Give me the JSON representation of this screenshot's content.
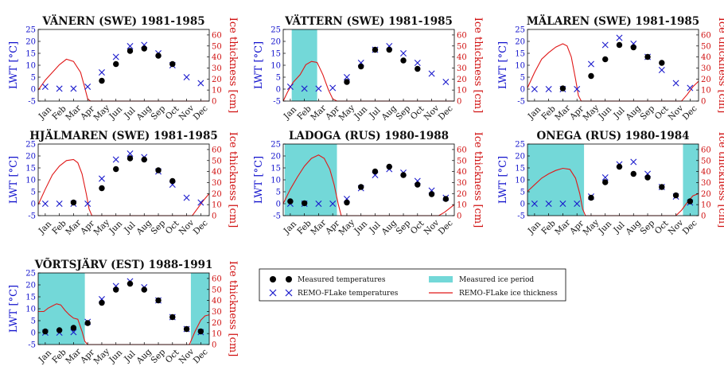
{
  "colors": {
    "ice_period": "#73d8d8",
    "ice_line": "#e01818",
    "remo_marker": "#1a1acc",
    "measured_marker": "#000000",
    "left_axis": "#1010cc",
    "right_axis": "#d01010"
  },
  "legend": {
    "measured": "Measured temperatures",
    "remo": "REMO-FLake temperatures",
    "ice_period": "Measured ice period",
    "ice_thickness": "REMO-FLake ice thickness"
  },
  "chart_data": [
    {
      "type": "line",
      "title": "VÄNERN (SWE) 1981-1985",
      "ylabel": "LWT [°C]",
      "y2label": "Ice thickness [cm]",
      "ylim": [
        -5,
        25
      ],
      "y2lim": [
        0,
        65
      ],
      "yticks": [
        "-5",
        "0",
        "5",
        "10",
        "15",
        "20",
        "25"
      ],
      "y2ticks": [
        "0",
        "10",
        "20",
        "30",
        "40",
        "50",
        "60"
      ],
      "categories": [
        "Jan",
        "Feb",
        "Mar",
        "Apr",
        "May",
        "Jun",
        "Jul",
        "Aug",
        "Sep",
        "Oct",
        "Nov",
        "Dec"
      ],
      "measured": [
        null,
        null,
        null,
        null,
        3.5,
        10.5,
        16,
        17,
        14,
        10.5,
        null,
        null
      ],
      "remo": [
        1,
        0.2,
        0.2,
        1,
        7,
        13.5,
        18,
        18.5,
        15,
        10,
        5,
        2.5
      ],
      "ice_periods": [],
      "ice_thickness": [
        [
          0.5,
          10
        ],
        [
          1,
          19
        ],
        [
          1.5,
          26
        ],
        [
          2,
          33
        ],
        [
          2.5,
          38
        ],
        [
          3,
          36
        ],
        [
          3.5,
          26
        ],
        [
          3.8,
          12
        ],
        [
          4,
          2
        ],
        [
          4.2,
          0
        ],
        [
          12.6,
          0
        ]
      ]
    },
    {
      "type": "line",
      "title": "VÄTTERN (SWE) 1981-1985",
      "ylabel": "LWT [°C]",
      "y2label": "Ice thickness [cm]",
      "ylim": [
        -5,
        25
      ],
      "y2lim": [
        0,
        65
      ],
      "yticks": [
        "-5",
        "0",
        "5",
        "10",
        "15",
        "20",
        "25"
      ],
      "y2ticks": [
        "0",
        "10",
        "20",
        "30",
        "40",
        "50",
        "60"
      ],
      "categories": [
        "Jan",
        "Feb",
        "Mar",
        "Apr",
        "May",
        "Jun",
        "Jul",
        "Aug",
        "Sep",
        "Oct",
        "Nov",
        "Dec"
      ],
      "measured": [
        null,
        null,
        null,
        null,
        3,
        9.5,
        16.5,
        16.5,
        12,
        8.5,
        null,
        null
      ],
      "remo": [
        1,
        0.2,
        0.2,
        0.5,
        5,
        11,
        16.5,
        18,
        15,
        11,
        6.5,
        3
      ],
      "ice_periods": [
        [
          1.1,
          2.9
        ]
      ],
      "ice_thickness": [
        [
          0.5,
          0
        ],
        [
          0.8,
          8
        ],
        [
          1.2,
          17
        ],
        [
          1.7,
          24
        ],
        [
          2.1,
          33
        ],
        [
          2.5,
          36
        ],
        [
          2.9,
          35
        ],
        [
          3.3,
          24
        ],
        [
          3.7,
          10
        ],
        [
          4.0,
          2
        ],
        [
          4.3,
          0
        ],
        [
          12.6,
          0
        ]
      ]
    },
    {
      "type": "line",
      "title": "MÄLAREN (SWE) 1981-1985",
      "ylabel": "LWT [°C]",
      "y2label": "Ice thickness [cm]",
      "ylim": [
        -5,
        25
      ],
      "y2lim": [
        0,
        65
      ],
      "yticks": [
        "-5",
        "0",
        "5",
        "10",
        "15",
        "20",
        "25"
      ],
      "y2ticks": [
        "0",
        "10",
        "20",
        "30",
        "40",
        "50",
        "60"
      ],
      "categories": [
        "Jan",
        "Feb",
        "Mar",
        "Apr",
        "May",
        "Jun",
        "Jul",
        "Aug",
        "Sep",
        "Oct",
        "Nov",
        "Dec"
      ],
      "measured": [
        null,
        null,
        0.3,
        null,
        5.5,
        12.5,
        18.5,
        17.5,
        13.5,
        11,
        null,
        null
      ],
      "remo": [
        0,
        0,
        0,
        0,
        10.5,
        18.5,
        21.5,
        19,
        13.5,
        8,
        2.5,
        0.5
      ],
      "ice_periods": [],
      "ice_thickness": [
        [
          0.5,
          12
        ],
        [
          1,
          26
        ],
        [
          1.5,
          38
        ],
        [
          2,
          44
        ],
        [
          2.5,
          49
        ],
        [
          3,
          52
        ],
        [
          3.3,
          50
        ],
        [
          3.6,
          40
        ],
        [
          3.9,
          20
        ],
        [
          4.1,
          5
        ],
        [
          4.3,
          0
        ],
        [
          11.4,
          0
        ],
        [
          11.8,
          6
        ],
        [
          12.2,
          13
        ],
        [
          12.6,
          18
        ]
      ]
    },
    {
      "type": "line",
      "title": "HJÄLMAREN (SWE) 1981-1985",
      "ylabel": "LWT [°C]",
      "y2label": "Ice thickness [cm]",
      "ylim": [
        -5,
        25
      ],
      "y2lim": [
        0,
        65
      ],
      "yticks": [
        "-5",
        "0",
        "5",
        "10",
        "15",
        "20",
        "25"
      ],
      "y2ticks": [
        "0",
        "10",
        "20",
        "30",
        "40",
        "50",
        "60"
      ],
      "categories": [
        "Jan",
        "Feb",
        "Mar",
        "Apr",
        "May",
        "Jun",
        "Jul",
        "Aug",
        "Sep",
        "Oct",
        "Nov",
        "Dec"
      ],
      "measured": [
        null,
        null,
        0.5,
        null,
        6.5,
        14.5,
        19,
        18.5,
        14,
        9.5,
        null,
        null
      ],
      "remo": [
        0,
        0,
        0,
        0,
        10.5,
        18.5,
        21,
        19.5,
        13.5,
        8,
        2.5,
        0.5
      ],
      "ice_periods": [],
      "ice_thickness": [
        [
          0.5,
          10
        ],
        [
          1,
          24
        ],
        [
          1.5,
          37
        ],
        [
          2,
          45
        ],
        [
          2.5,
          50
        ],
        [
          3,
          51
        ],
        [
          3.3,
          48
        ],
        [
          3.6,
          38
        ],
        [
          3.9,
          20
        ],
        [
          4.1,
          6
        ],
        [
          4.3,
          0
        ],
        [
          11.4,
          0
        ],
        [
          11.8,
          7
        ],
        [
          12.2,
          14
        ],
        [
          12.6,
          20
        ]
      ]
    },
    {
      "type": "line",
      "title": "LADOGA (RUS) 1980-1988",
      "ylabel": "LWT [°C]",
      "y2label": "Ice thickness [cm]",
      "ylim": [
        -5,
        25
      ],
      "y2lim": [
        0,
        65
      ],
      "yticks": [
        "-5",
        "0",
        "5",
        "10",
        "15",
        "20",
        "25"
      ],
      "y2ticks": [
        "0",
        "10",
        "20",
        "30",
        "40",
        "50",
        "60"
      ],
      "categories": [
        "Jan",
        "Feb",
        "Mar",
        "Apr",
        "May",
        "Jun",
        "Jul",
        "Aug",
        "Sep",
        "Oct",
        "Nov",
        "Dec"
      ],
      "measured": [
        1,
        0.2,
        null,
        null,
        0.5,
        7,
        13.5,
        15.5,
        12,
        8,
        4,
        2
      ],
      "remo": [
        0,
        0,
        0,
        0,
        2,
        6.5,
        12,
        14.5,
        13,
        9.5,
        5.5,
        2.5
      ],
      "ice_periods": [
        [
          0.6,
          4.3
        ]
      ],
      "ice_thickness": [
        [
          0.5,
          11
        ],
        [
          1,
          24
        ],
        [
          1.5,
          35
        ],
        [
          2,
          45
        ],
        [
          2.5,
          52
        ],
        [
          3,
          55
        ],
        [
          3.4,
          52
        ],
        [
          3.8,
          42
        ],
        [
          4.1,
          28
        ],
        [
          4.4,
          10
        ],
        [
          4.6,
          0
        ],
        [
          11.5,
          0
        ],
        [
          11.9,
          3
        ],
        [
          12.3,
          7
        ],
        [
          12.6,
          10
        ]
      ]
    },
    {
      "type": "line",
      "title": "ONEGA (RUS) 1980-1984",
      "ylabel": "LWT [°C]",
      "y2label": "Ice thickness [cm]",
      "ylim": [
        -5,
        25
      ],
      "y2lim": [
        0,
        65
      ],
      "yticks": [
        "-5",
        "0",
        "5",
        "10",
        "15",
        "20",
        "25"
      ],
      "y2ticks": [
        "0",
        "10",
        "20",
        "30",
        "40",
        "50",
        "60"
      ],
      "categories": [
        "Jan",
        "Feb",
        "Mar",
        "Apr",
        "May",
        "Jun",
        "Jul",
        "Aug",
        "Sep",
        "Oct",
        "Nov",
        "Dec"
      ],
      "measured": [
        null,
        null,
        null,
        null,
        2.5,
        9,
        15.5,
        12.5,
        11,
        7,
        3.5,
        1
      ],
      "remo": [
        0,
        0,
        0,
        0,
        3,
        11,
        16.5,
        17.5,
        12.5,
        7,
        3,
        0.5
      ],
      "ice_periods": [
        [
          0.5,
          4.5
        ],
        [
          11.5,
          12.6
        ]
      ],
      "ice_thickness": [
        [
          0.5,
          22
        ],
        [
          1,
          28
        ],
        [
          1.5,
          34
        ],
        [
          2,
          38
        ],
        [
          2.5,
          41
        ],
        [
          3,
          43
        ],
        [
          3.5,
          42
        ],
        [
          3.9,
          34
        ],
        [
          4.2,
          20
        ],
        [
          4.4,
          6
        ],
        [
          4.6,
          0
        ],
        [
          11.0,
          0
        ],
        [
          11.4,
          5
        ],
        [
          11.8,
          12
        ],
        [
          12.2,
          18
        ],
        [
          12.6,
          20
        ]
      ]
    },
    {
      "type": "line",
      "title": "VÕRTSJÄRV (EST) 1988-1991",
      "ylabel": "LWT [°C]",
      "y2label": "Ice thickness [cm]",
      "ylim": [
        -5,
        25
      ],
      "y2lim": [
        0,
        65
      ],
      "yticks": [
        "-5",
        "0",
        "5",
        "10",
        "15",
        "20",
        "25"
      ],
      "y2ticks": [
        "0",
        "10",
        "20",
        "30",
        "40",
        "50",
        "60"
      ],
      "categories": [
        "Jan",
        "Feb",
        "Mar",
        "Apr",
        "May",
        "Jun",
        "Jul",
        "Aug",
        "Sep",
        "Oct",
        "Nov",
        "Dec"
      ],
      "measured": [
        0.5,
        1,
        2,
        4,
        12.5,
        18,
        20.5,
        18,
        13.5,
        6.5,
        1.5,
        0.5
      ],
      "remo": [
        0,
        0,
        0.2,
        4.5,
        14,
        19.5,
        21.5,
        19,
        13.5,
        6.5,
        1.5,
        0.2
      ],
      "ice_periods": [
        [
          0.5,
          3.8
        ],
        [
          11.3,
          12.6
        ]
      ],
      "ice_thickness": [
        [
          0.5,
          30
        ],
        [
          0.9,
          30
        ],
        [
          1.2,
          33
        ],
        [
          1.5,
          35
        ],
        [
          1.8,
          37
        ],
        [
          2.1,
          36
        ],
        [
          2.4,
          31
        ],
        [
          2.7,
          27
        ],
        [
          3.0,
          24
        ],
        [
          3.3,
          23
        ],
        [
          3.6,
          12
        ],
        [
          3.8,
          3
        ],
        [
          4.0,
          0
        ],
        [
          11.2,
          0
        ],
        [
          11.6,
          12
        ],
        [
          12.0,
          22
        ],
        [
          12.3,
          26
        ],
        [
          12.6,
          27
        ]
      ]
    }
  ]
}
